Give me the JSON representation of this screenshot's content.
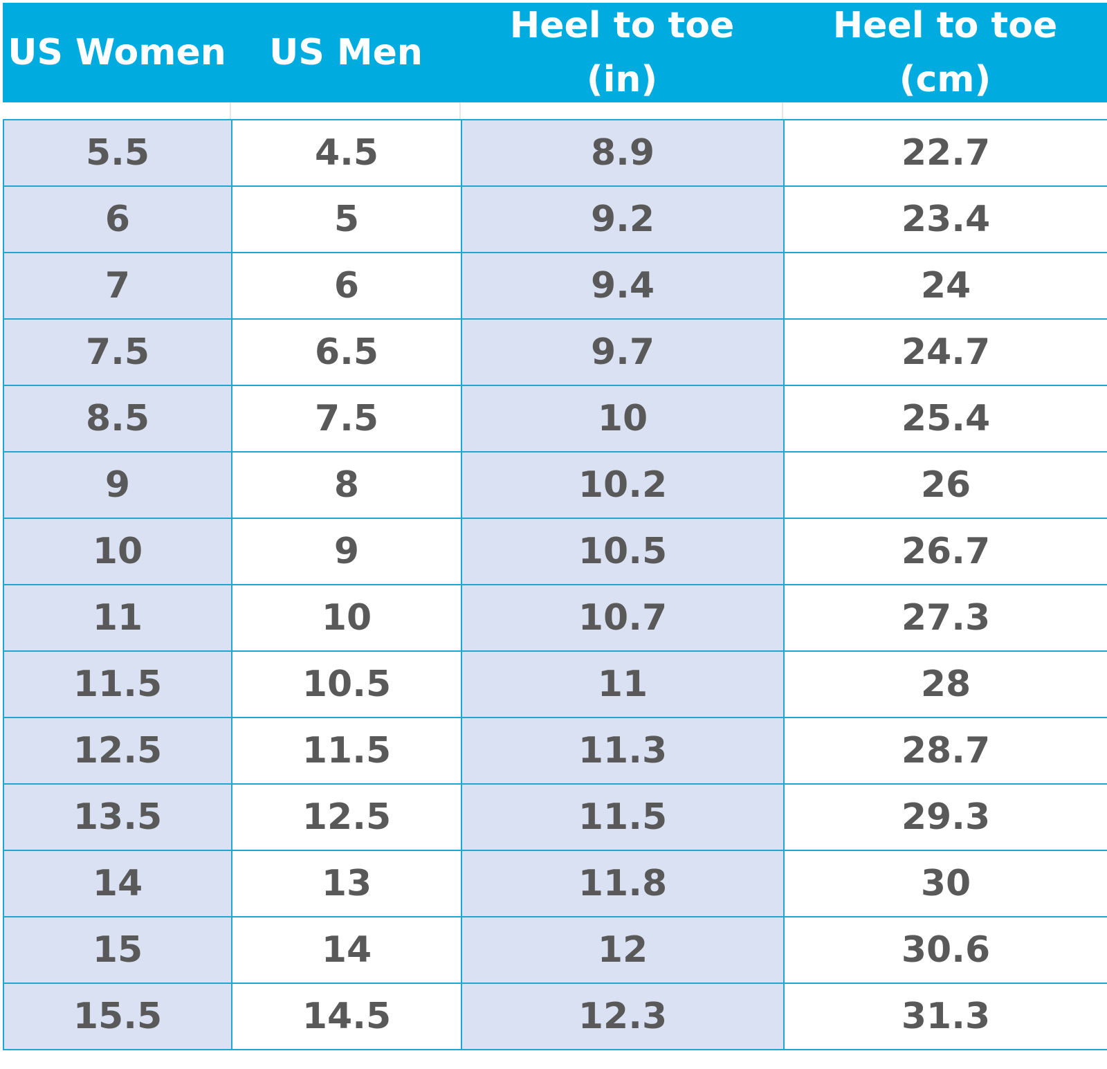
{
  "table": {
    "headers": [
      "US Women",
      "US Men",
      "Heel to toe\n(in)",
      "Heel to toe\n(cm)"
    ],
    "rows": [
      [
        "5.5",
        "4.5",
        "8.9",
        "22.7"
      ],
      [
        "6",
        "5",
        "9.2",
        "23.4"
      ],
      [
        "7",
        "6",
        "9.4",
        "24"
      ],
      [
        "7.5",
        "6.5",
        "9.7",
        "24.7"
      ],
      [
        "8.5",
        "7.5",
        "10",
        "25.4"
      ],
      [
        "9",
        "8",
        "10.2",
        "26"
      ],
      [
        "10",
        "9",
        "10.5",
        "26.7"
      ],
      [
        "11",
        "10",
        "10.7",
        "27.3"
      ],
      [
        "11.5",
        "10.5",
        "11",
        "28"
      ],
      [
        "12.5",
        "11.5",
        "11.3",
        "28.7"
      ],
      [
        "13.5",
        "12.5",
        "11.5",
        "29.3"
      ],
      [
        "14",
        "13",
        "11.8",
        "30"
      ],
      [
        "15",
        "14",
        "12",
        "30.6"
      ],
      [
        "15.5",
        "14.5",
        "12.3",
        "31.3"
      ]
    ]
  },
  "colors": {
    "header_background": "#00acdf",
    "header_text": "#ffffff",
    "shaded_column": "#d9e1f2",
    "grid_line": "#1ba7d8",
    "cell_text": "#595959"
  }
}
